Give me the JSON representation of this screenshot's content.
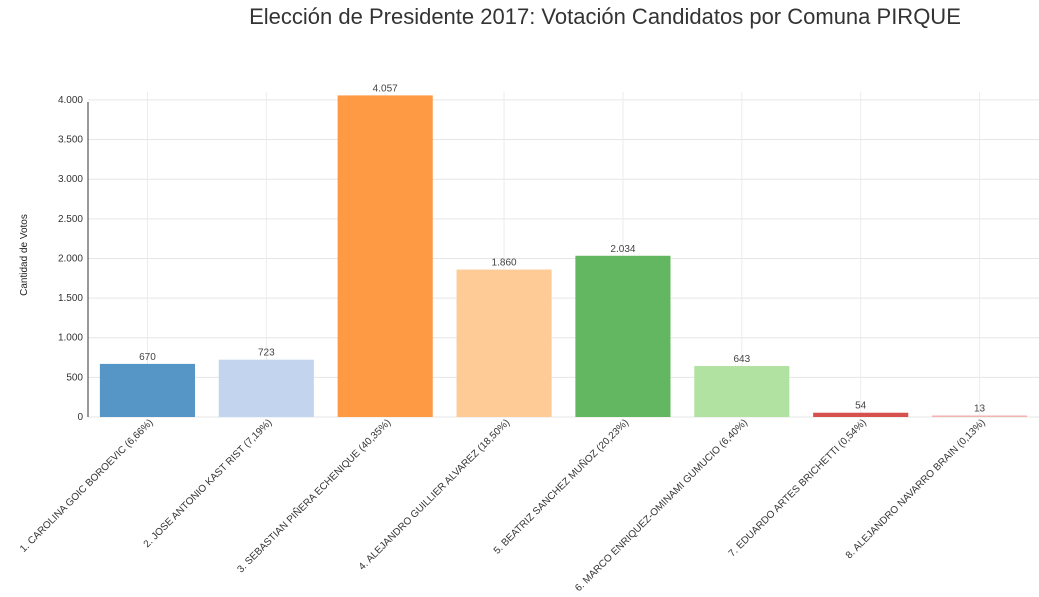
{
  "chart_data": {
    "type": "bar",
    "title": "Elección de Presidente 2017: Votación Candidatos por Comuna PIRQUE",
    "ylabel": "Cantidad de Votos",
    "xlabel": "",
    "ylim": [
      0,
      4100
    ],
    "yticks": [
      0,
      500,
      1000,
      1500,
      2000,
      2500,
      3000,
      3500,
      4000
    ],
    "ytick_labels": [
      "0",
      "500",
      "1.000",
      "1.500",
      "2.000",
      "2.500",
      "3.000",
      "3.500",
      "4.000"
    ],
    "grid": true,
    "categories": [
      "1. CAROLINA GOIC BOROEVIC (6,66%)",
      "2. JOSE ANTONIO KAST RIST (7,19%)",
      "3. SEBASTIAN PIÑERA ECHENIQUE (40,35%)",
      "4. ALEJANDRO GUILLIER ALVAREZ (18,50%)",
      "5. BEATRIZ SANCHEZ MUÑOZ (20,23%)",
      "6. MARCO ENRIQUEZ-OMINAMI GUMUCIO (6,40%)",
      "7. EDUARDO ARTES BRICHETTI (0,54%)",
      "8. ALEJANDRO NAVARRO BRAIN (0,13%)"
    ],
    "values": [
      670,
      723,
      4057,
      1860,
      2034,
      643,
      54,
      13
    ],
    "value_labels": [
      "670",
      "723",
      "4.057",
      "1.860",
      "2.034",
      "643",
      "54",
      "13"
    ],
    "colors": [
      "#5596c6",
      "#c3d5ee",
      "#fd9a43",
      "#fecb96",
      "#63b761",
      "#b2e2a2",
      "#d6504e",
      "#f3b3b1"
    ]
  }
}
